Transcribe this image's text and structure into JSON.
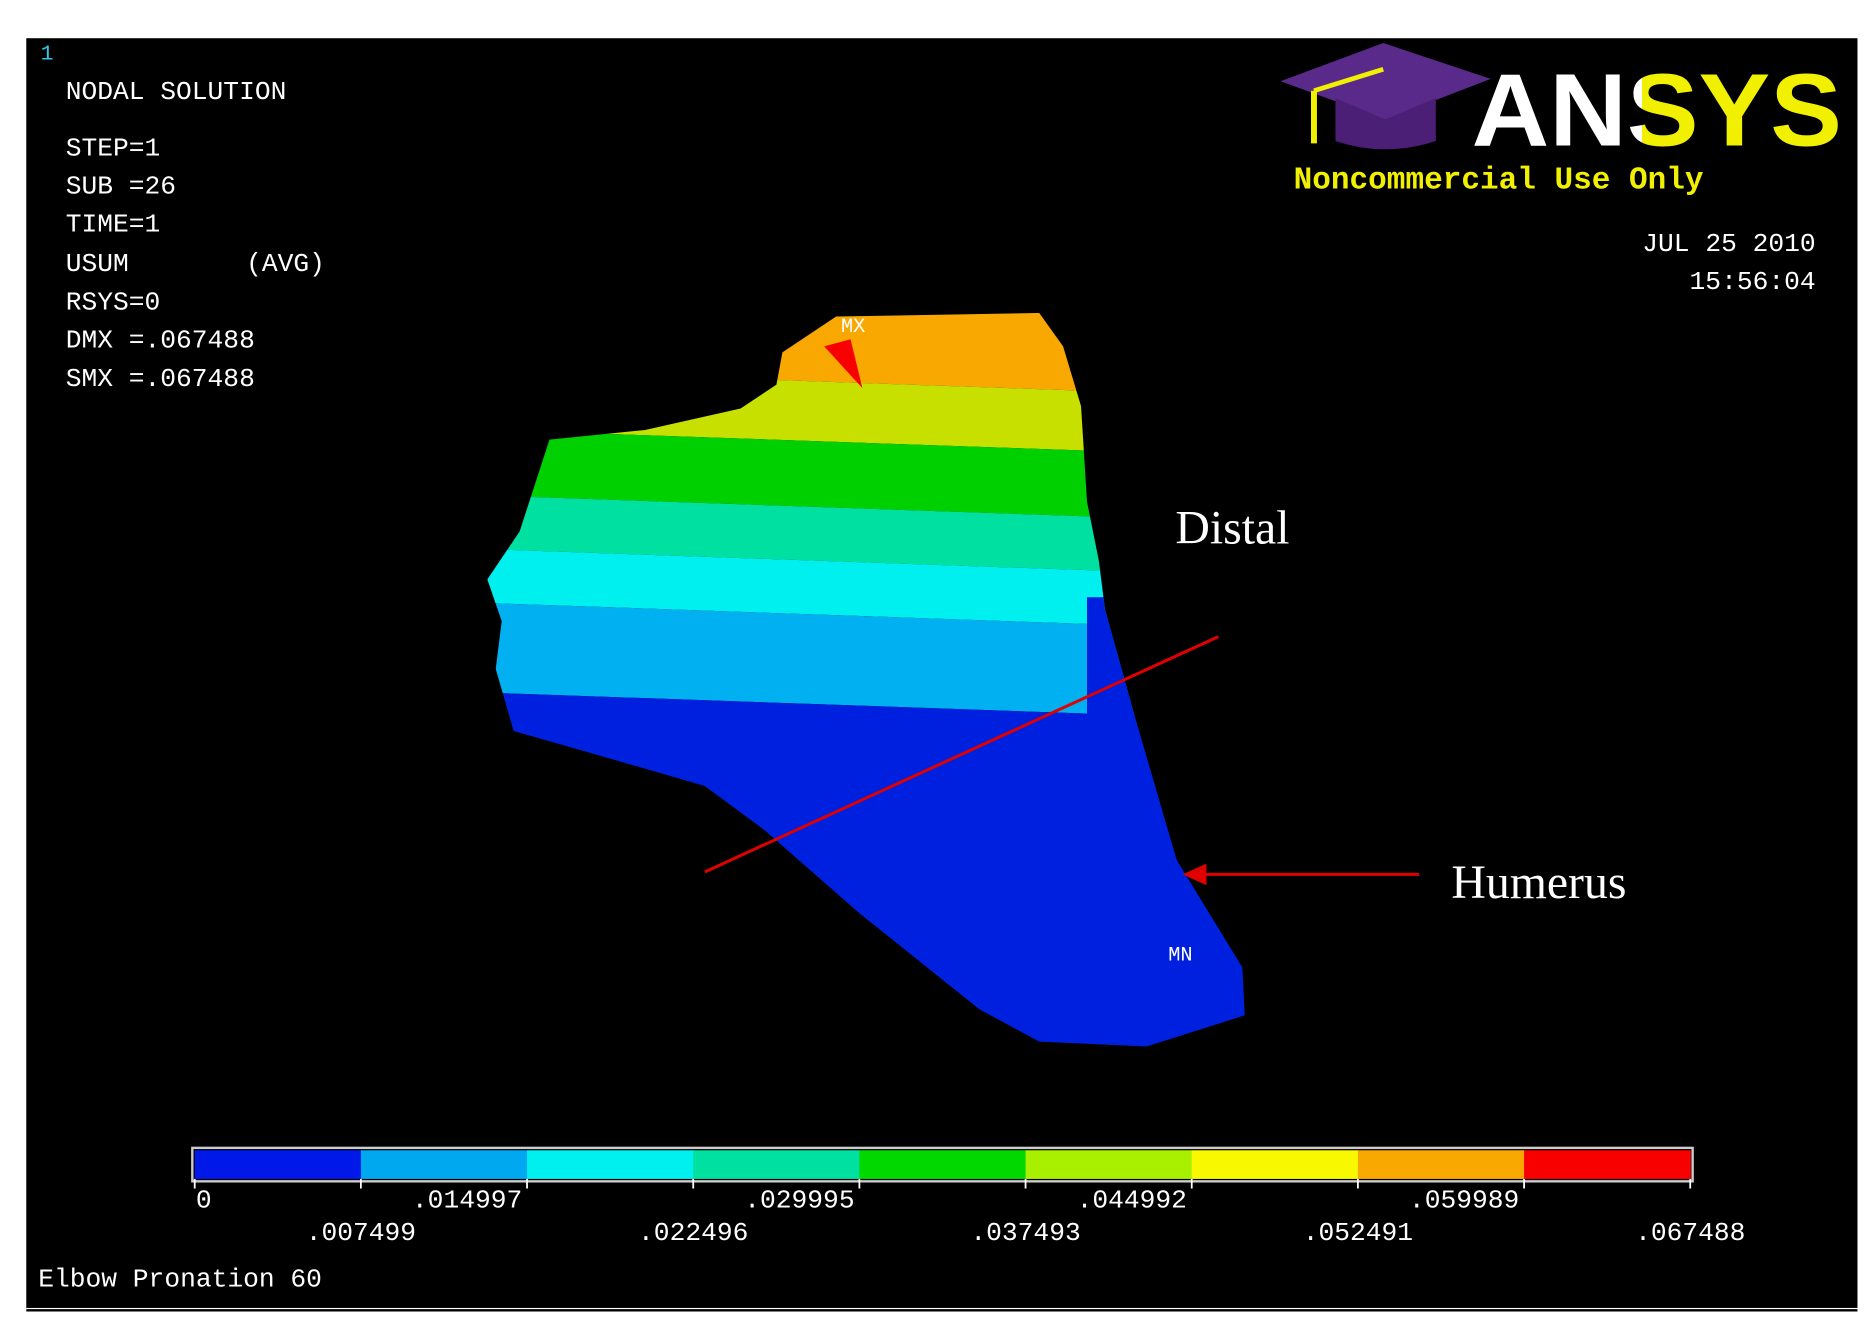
{
  "viewport": {
    "step_number": "1",
    "title": "NODAL SOLUTION",
    "info": [
      "STEP=1",
      "SUB =26",
      "TIME=1",
      "USUM",
      "(AVG)",
      "RSYS=0",
      "DMX =.067488",
      "SMX =.067488"
    ],
    "logo": {
      "name": "ANSYS",
      "notice": "Noncommercial Use Only"
    },
    "date": "JUL 25 2010",
    "time": "15:56:04",
    "max_label": "MX",
    "min_label": "MN",
    "annotations": {
      "distal": "Distal",
      "humerus": "Humerus"
    },
    "legend": {
      "labels": [
        "0",
        ".007499",
        ".014997",
        ".022496",
        ".029995",
        ".037493",
        ".044992",
        ".052491",
        ".059989",
        ".067488"
      ],
      "colors": [
        "#0018e8",
        "#00a8f0",
        "#00f0f0",
        "#00e0a0",
        "#00d800",
        "#a8f000",
        "#f8f800",
        "#f8a800",
        "#f80000"
      ]
    },
    "caption": "Elbow Pronation 60"
  }
}
